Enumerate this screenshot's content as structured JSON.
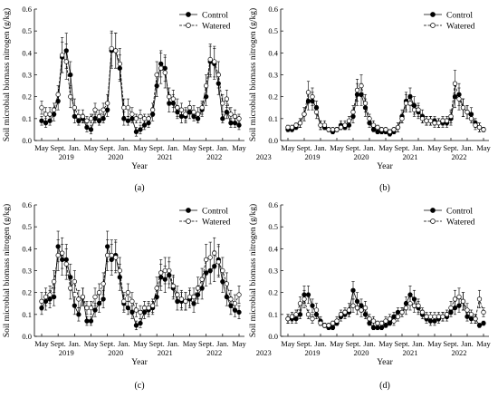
{
  "figure": {
    "ylabel": "Soil microbial biomass nitrogen (g/kg)",
    "xlabel": "Year",
    "month_ticks": [
      "May",
      "Sept.",
      "Jan.",
      "May",
      "Sept.",
      "Jan.",
      "May",
      "Sept.",
      "Jan.",
      "May",
      "Sept.",
      "Jan.",
      "May"
    ],
    "year_ticks": [
      "2019",
      "2020",
      "2021",
      "2022",
      "2023"
    ],
    "y_ticks": [
      "0.0",
      "0.1",
      "0.2",
      "0.3",
      "0.4",
      "0.5",
      "0.6"
    ],
    "legend": {
      "control": "Control",
      "watered": "Watered"
    },
    "panel_labels": [
      "(a)",
      "(b)",
      "(c)",
      "(d)"
    ]
  },
  "colors": {
    "control": "#000000",
    "watered": "#ffffff",
    "line": "#000000"
  },
  "chart_data": [
    {
      "type": "line",
      "panel": "(a)",
      "ylim": [
        0,
        0.6
      ],
      "grid": false,
      "legend_position": "top-right",
      "x_months": [
        0,
        1,
        2,
        3,
        4,
        5,
        6,
        7,
        8,
        9,
        10,
        11,
        12,
        13,
        14,
        15,
        16,
        17,
        18,
        19,
        20,
        21,
        22,
        23,
        24,
        25,
        26,
        27,
        28,
        29,
        30,
        31,
        32,
        33,
        34,
        35,
        36,
        37,
        38,
        39,
        40,
        41,
        42,
        43,
        44,
        45,
        46,
        47,
        48
      ],
      "series": [
        {
          "name": "Control",
          "values": [
            0.09,
            0.08,
            0.09,
            0.12,
            0.18,
            0.38,
            0.41,
            0.3,
            0.11,
            0.09,
            0.1,
            0.06,
            0.05,
            0.1,
            0.09,
            0.1,
            0.14,
            0.41,
            0.41,
            0.33,
            0.1,
            0.09,
            0.1,
            0.04,
            0.05,
            0.07,
            0.08,
            0.12,
            0.25,
            0.35,
            0.33,
            0.17,
            0.17,
            0.13,
            0.11,
            0.11,
            0.13,
            0.11,
            0.1,
            0.14,
            0.2,
            0.36,
            0.35,
            0.26,
            0.1,
            0.13,
            0.08,
            0.08,
            0.07
          ],
          "errors": [
            0.02,
            0.02,
            0.02,
            0.03,
            0.04,
            0.07,
            0.08,
            0.06,
            0.03,
            0.02,
            0.02,
            0.02,
            0.02,
            0.02,
            0.02,
            0.02,
            0.03,
            0.08,
            0.08,
            0.06,
            0.03,
            0.02,
            0.02,
            0.02,
            0.02,
            0.02,
            0.02,
            0.03,
            0.05,
            0.06,
            0.06,
            0.04,
            0.04,
            0.03,
            0.03,
            0.03,
            0.03,
            0.02,
            0.02,
            0.03,
            0.04,
            0.07,
            0.07,
            0.05,
            0.02,
            0.03,
            0.02,
            0.02,
            0.02
          ]
        },
        {
          "name": "Watered",
          "values": [
            0.15,
            0.12,
            0.12,
            0.14,
            0.21,
            0.39,
            0.36,
            0.2,
            0.15,
            0.11,
            0.11,
            0.09,
            0.1,
            0.14,
            0.11,
            0.14,
            0.17,
            0.42,
            0.41,
            0.35,
            0.15,
            0.15,
            0.12,
            0.1,
            0.11,
            0.1,
            0.1,
            0.14,
            0.3,
            0.33,
            0.31,
            0.2,
            0.19,
            0.15,
            0.14,
            0.12,
            0.15,
            0.13,
            0.12,
            0.15,
            0.25,
            0.37,
            0.36,
            0.3,
            0.17,
            0.19,
            0.12,
            0.11,
            0.1
          ],
          "errors": [
            0.03,
            0.03,
            0.03,
            0.03,
            0.04,
            0.08,
            0.08,
            0.05,
            0.04,
            0.03,
            0.03,
            0.02,
            0.02,
            0.03,
            0.03,
            0.03,
            0.04,
            0.08,
            0.08,
            0.07,
            0.04,
            0.04,
            0.03,
            0.02,
            0.03,
            0.02,
            0.02,
            0.03,
            0.06,
            0.07,
            0.07,
            0.04,
            0.04,
            0.04,
            0.03,
            0.03,
            0.03,
            0.03,
            0.03,
            0.03,
            0.05,
            0.07,
            0.07,
            0.06,
            0.04,
            0.04,
            0.03,
            0.03,
            0.02
          ]
        }
      ]
    },
    {
      "type": "line",
      "panel": "(b)",
      "ylim": [
        0,
        0.6
      ],
      "grid": false,
      "legend_position": "top-right",
      "x_months": [
        0,
        1,
        2,
        3,
        4,
        5,
        6,
        7,
        8,
        9,
        10,
        11,
        12,
        13,
        14,
        15,
        16,
        17,
        18,
        19,
        20,
        21,
        22,
        23,
        24,
        25,
        26,
        27,
        28,
        29,
        30,
        31,
        32,
        33,
        34,
        35,
        36,
        37,
        38,
        39,
        40,
        41,
        42,
        43,
        44,
        45,
        46,
        47,
        48
      ],
      "series": [
        {
          "name": "Control",
          "values": [
            0.05,
            0.05,
            0.06,
            0.08,
            0.12,
            0.18,
            0.18,
            0.15,
            0.07,
            0.06,
            0.05,
            0.04,
            0.05,
            0.07,
            0.06,
            0.07,
            0.11,
            0.21,
            0.21,
            0.15,
            0.08,
            0.05,
            0.04,
            0.04,
            0.04,
            0.03,
            0.04,
            0.06,
            0.11,
            0.18,
            0.2,
            0.16,
            0.13,
            0.11,
            0.09,
            0.09,
            0.09,
            0.08,
            0.08,
            0.08,
            0.1,
            0.2,
            0.21,
            0.15,
            0.13,
            0.12,
            0.08,
            0.06,
            0.05
          ],
          "errors": [
            0.01,
            0.01,
            0.01,
            0.02,
            0.03,
            0.04,
            0.04,
            0.03,
            0.02,
            0.01,
            0.01,
            0.01,
            0.01,
            0.02,
            0.01,
            0.02,
            0.03,
            0.05,
            0.05,
            0.04,
            0.02,
            0.01,
            0.01,
            0.01,
            0.01,
            0.01,
            0.01,
            0.02,
            0.03,
            0.04,
            0.04,
            0.04,
            0.03,
            0.03,
            0.02,
            0.02,
            0.02,
            0.02,
            0.02,
            0.02,
            0.03,
            0.05,
            0.05,
            0.04,
            0.03,
            0.03,
            0.02,
            0.02,
            0.01
          ]
        },
        {
          "name": "Watered",
          "values": [
            0.06,
            0.06,
            0.07,
            0.08,
            0.12,
            0.22,
            0.2,
            0.13,
            0.07,
            0.07,
            0.05,
            0.05,
            0.05,
            0.06,
            0.07,
            0.09,
            0.13,
            0.23,
            0.25,
            0.17,
            0.1,
            0.07,
            0.06,
            0.05,
            0.05,
            0.04,
            0.05,
            0.06,
            0.1,
            0.17,
            0.17,
            0.14,
            0.14,
            0.1,
            0.09,
            0.09,
            0.08,
            0.08,
            0.09,
            0.09,
            0.11,
            0.26,
            0.19,
            0.15,
            0.13,
            0.1,
            0.07,
            0.06,
            0.05
          ],
          "errors": [
            0.01,
            0.01,
            0.01,
            0.02,
            0.03,
            0.05,
            0.04,
            0.03,
            0.02,
            0.02,
            0.01,
            0.01,
            0.01,
            0.01,
            0.02,
            0.02,
            0.03,
            0.05,
            0.05,
            0.04,
            0.02,
            0.02,
            0.01,
            0.01,
            0.01,
            0.01,
            0.01,
            0.02,
            0.02,
            0.04,
            0.04,
            0.03,
            0.03,
            0.02,
            0.02,
            0.02,
            0.02,
            0.02,
            0.02,
            0.02,
            0.03,
            0.06,
            0.05,
            0.04,
            0.03,
            0.02,
            0.02,
            0.02,
            0.01
          ]
        }
      ]
    },
    {
      "type": "line",
      "panel": "(c)",
      "ylim": [
        0,
        0.6
      ],
      "grid": false,
      "legend_position": "top-right",
      "x_months": [
        0,
        1,
        2,
        3,
        4,
        5,
        6,
        7,
        8,
        9,
        10,
        11,
        12,
        13,
        14,
        15,
        16,
        17,
        18,
        19,
        20,
        21,
        22,
        23,
        24,
        25,
        26,
        27,
        28,
        29,
        30,
        31,
        32,
        33,
        34,
        35,
        36,
        37,
        38,
        39,
        40,
        41,
        42,
        43,
        44,
        45,
        46,
        47,
        48
      ],
      "series": [
        {
          "name": "Control",
          "values": [
            0.13,
            0.16,
            0.17,
            0.18,
            0.41,
            0.35,
            0.35,
            0.27,
            0.14,
            0.1,
            0.18,
            0.07,
            0.07,
            0.12,
            0.15,
            0.17,
            0.41,
            0.35,
            0.37,
            0.27,
            0.15,
            0.13,
            0.11,
            0.05,
            0.06,
            0.11,
            0.12,
            0.13,
            0.18,
            0.27,
            0.26,
            0.28,
            0.22,
            0.16,
            0.16,
            0.16,
            0.17,
            0.15,
            0.19,
            0.22,
            0.29,
            0.3,
            0.32,
            0.35,
            0.25,
            0.18,
            0.14,
            0.12,
            0.11
          ],
          "errors": [
            0.03,
            0.04,
            0.04,
            0.04,
            0.07,
            0.07,
            0.07,
            0.06,
            0.04,
            0.03,
            0.04,
            0.02,
            0.02,
            0.03,
            0.04,
            0.04,
            0.07,
            0.07,
            0.07,
            0.06,
            0.04,
            0.03,
            0.03,
            0.02,
            0.02,
            0.03,
            0.03,
            0.03,
            0.04,
            0.06,
            0.06,
            0.06,
            0.05,
            0.04,
            0.04,
            0.04,
            0.04,
            0.04,
            0.04,
            0.05,
            0.06,
            0.06,
            0.07,
            0.07,
            0.05,
            0.04,
            0.04,
            0.03,
            0.03
          ]
        },
        {
          "name": "Watered",
          "values": [
            0.16,
            0.18,
            0.19,
            0.25,
            0.37,
            0.38,
            0.33,
            0.22,
            0.25,
            0.17,
            0.18,
            0.13,
            0.13,
            0.18,
            0.2,
            0.24,
            0.37,
            0.37,
            0.36,
            0.3,
            0.16,
            0.2,
            0.16,
            0.12,
            0.11,
            0.13,
            0.13,
            0.14,
            0.22,
            0.29,
            0.3,
            0.3,
            0.23,
            0.19,
            0.17,
            0.16,
            0.18,
            0.18,
            0.22,
            0.26,
            0.35,
            0.36,
            0.38,
            0.34,
            0.3,
            0.24,
            0.17,
            0.15,
            0.19
          ],
          "errors": [
            0.04,
            0.04,
            0.04,
            0.05,
            0.07,
            0.07,
            0.07,
            0.05,
            0.05,
            0.04,
            0.04,
            0.03,
            0.03,
            0.04,
            0.04,
            0.05,
            0.07,
            0.07,
            0.07,
            0.06,
            0.04,
            0.04,
            0.04,
            0.03,
            0.03,
            0.03,
            0.03,
            0.03,
            0.05,
            0.06,
            0.06,
            0.06,
            0.05,
            0.04,
            0.04,
            0.04,
            0.04,
            0.04,
            0.05,
            0.05,
            0.07,
            0.07,
            0.07,
            0.07,
            0.06,
            0.05,
            0.04,
            0.04,
            0.04
          ]
        }
      ]
    },
    {
      "type": "line",
      "panel": "(d)",
      "ylim": [
        0,
        0.6
      ],
      "grid": false,
      "legend_position": "top-right",
      "x_months": [
        0,
        1,
        2,
        3,
        4,
        5,
        6,
        7,
        8,
        9,
        10,
        11,
        12,
        13,
        14,
        15,
        16,
        17,
        18,
        19,
        20,
        21,
        22,
        23,
        24,
        25,
        26,
        27,
        28,
        29,
        30,
        31,
        32,
        33,
        34,
        35,
        36,
        37,
        38,
        39,
        40,
        41,
        42,
        43,
        44,
        45,
        46,
        47,
        48
      ],
      "series": [
        {
          "name": "Control",
          "values": [
            0.08,
            0.08,
            0.08,
            0.1,
            0.19,
            0.19,
            0.14,
            0.1,
            0.07,
            0.05,
            0.04,
            0.04,
            0.06,
            0.09,
            0.1,
            0.11,
            0.21,
            0.16,
            0.14,
            0.1,
            0.06,
            0.04,
            0.04,
            0.04,
            0.05,
            0.06,
            0.09,
            0.11,
            0.11,
            0.15,
            0.19,
            0.17,
            0.13,
            0.1,
            0.08,
            0.07,
            0.07,
            0.08,
            0.09,
            0.09,
            0.11,
            0.13,
            0.14,
            0.16,
            0.09,
            0.08,
            0.08,
            0.05,
            0.06
          ],
          "errors": [
            0.02,
            0.02,
            0.02,
            0.02,
            0.04,
            0.04,
            0.03,
            0.02,
            0.02,
            0.01,
            0.01,
            0.01,
            0.01,
            0.02,
            0.02,
            0.02,
            0.04,
            0.04,
            0.03,
            0.02,
            0.01,
            0.01,
            0.01,
            0.01,
            0.01,
            0.01,
            0.02,
            0.02,
            0.02,
            0.03,
            0.04,
            0.04,
            0.03,
            0.02,
            0.02,
            0.02,
            0.02,
            0.02,
            0.02,
            0.02,
            0.02,
            0.03,
            0.03,
            0.04,
            0.02,
            0.02,
            0.02,
            0.01,
            0.01
          ]
        },
        {
          "name": "Watered",
          "values": [
            0.08,
            0.09,
            0.1,
            0.15,
            0.17,
            0.1,
            0.08,
            0.12,
            0.06,
            0.05,
            0.05,
            0.06,
            0.07,
            0.1,
            0.11,
            0.12,
            0.14,
            0.13,
            0.12,
            0.13,
            0.08,
            0.07,
            0.06,
            0.06,
            0.07,
            0.08,
            0.07,
            0.09,
            0.11,
            0.13,
            0.15,
            0.14,
            0.14,
            0.11,
            0.09,
            0.09,
            0.09,
            0.09,
            0.09,
            0.1,
            0.13,
            0.17,
            0.18,
            0.16,
            0.12,
            0.1,
            0.08,
            0.17,
            0.11
          ],
          "errors": [
            0.02,
            0.02,
            0.02,
            0.03,
            0.04,
            0.02,
            0.02,
            0.03,
            0.01,
            0.01,
            0.01,
            0.01,
            0.02,
            0.02,
            0.02,
            0.03,
            0.03,
            0.03,
            0.03,
            0.03,
            0.02,
            0.02,
            0.01,
            0.01,
            0.02,
            0.02,
            0.02,
            0.02,
            0.02,
            0.03,
            0.03,
            0.03,
            0.03,
            0.02,
            0.02,
            0.02,
            0.02,
            0.02,
            0.02,
            0.02,
            0.03,
            0.04,
            0.04,
            0.04,
            0.03,
            0.02,
            0.02,
            0.04,
            0.02
          ]
        }
      ]
    }
  ]
}
